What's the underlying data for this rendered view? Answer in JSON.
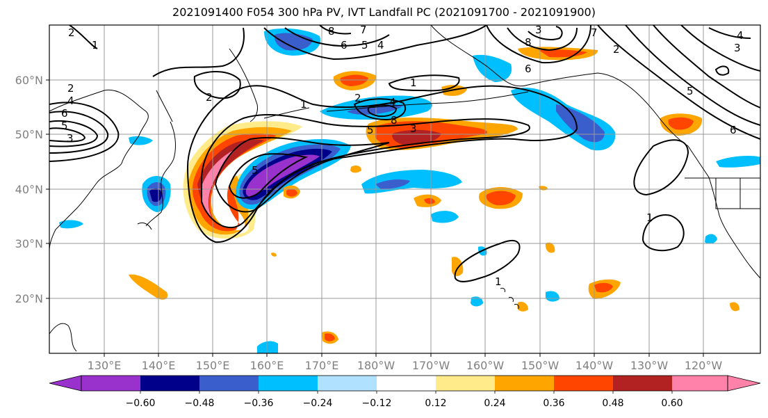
{
  "title": "2021091400 F054 300 hPa PV, IVT Landfall PC (2021091700 - 2021091900)",
  "map": {
    "lat_labels": [
      "60°N",
      "50°N",
      "40°N",
      "30°N",
      "20°N"
    ],
    "lon_labels": [
      "130°E",
      "140°E",
      "150°E",
      "160°E",
      "170°E",
      "180°W",
      "170°W",
      "160°W",
      "150°W",
      "140°W",
      "130°W",
      "120°W"
    ],
    "contour_labels": [
      "1",
      "2",
      "3",
      "4",
      "5",
      "6",
      "7",
      "8"
    ],
    "contour_color": "#000000",
    "coastline_color": "#000000",
    "grid_color": "#999999"
  },
  "colorbar": {
    "colors": [
      "#9932cc",
      "#00008b",
      "#3a5fcd",
      "#00bfff",
      "#b0e2ff",
      "#ffffff",
      "#ffeb8a",
      "#ffa500",
      "#ff4500",
      "#b22222",
      "#ff82ab"
    ],
    "tick_labels": [
      "−0.60",
      "−0.48",
      "−0.36",
      "−0.24",
      "−0.12",
      "0.12",
      "0.24",
      "0.36",
      "0.48",
      "0.60"
    ]
  }
}
